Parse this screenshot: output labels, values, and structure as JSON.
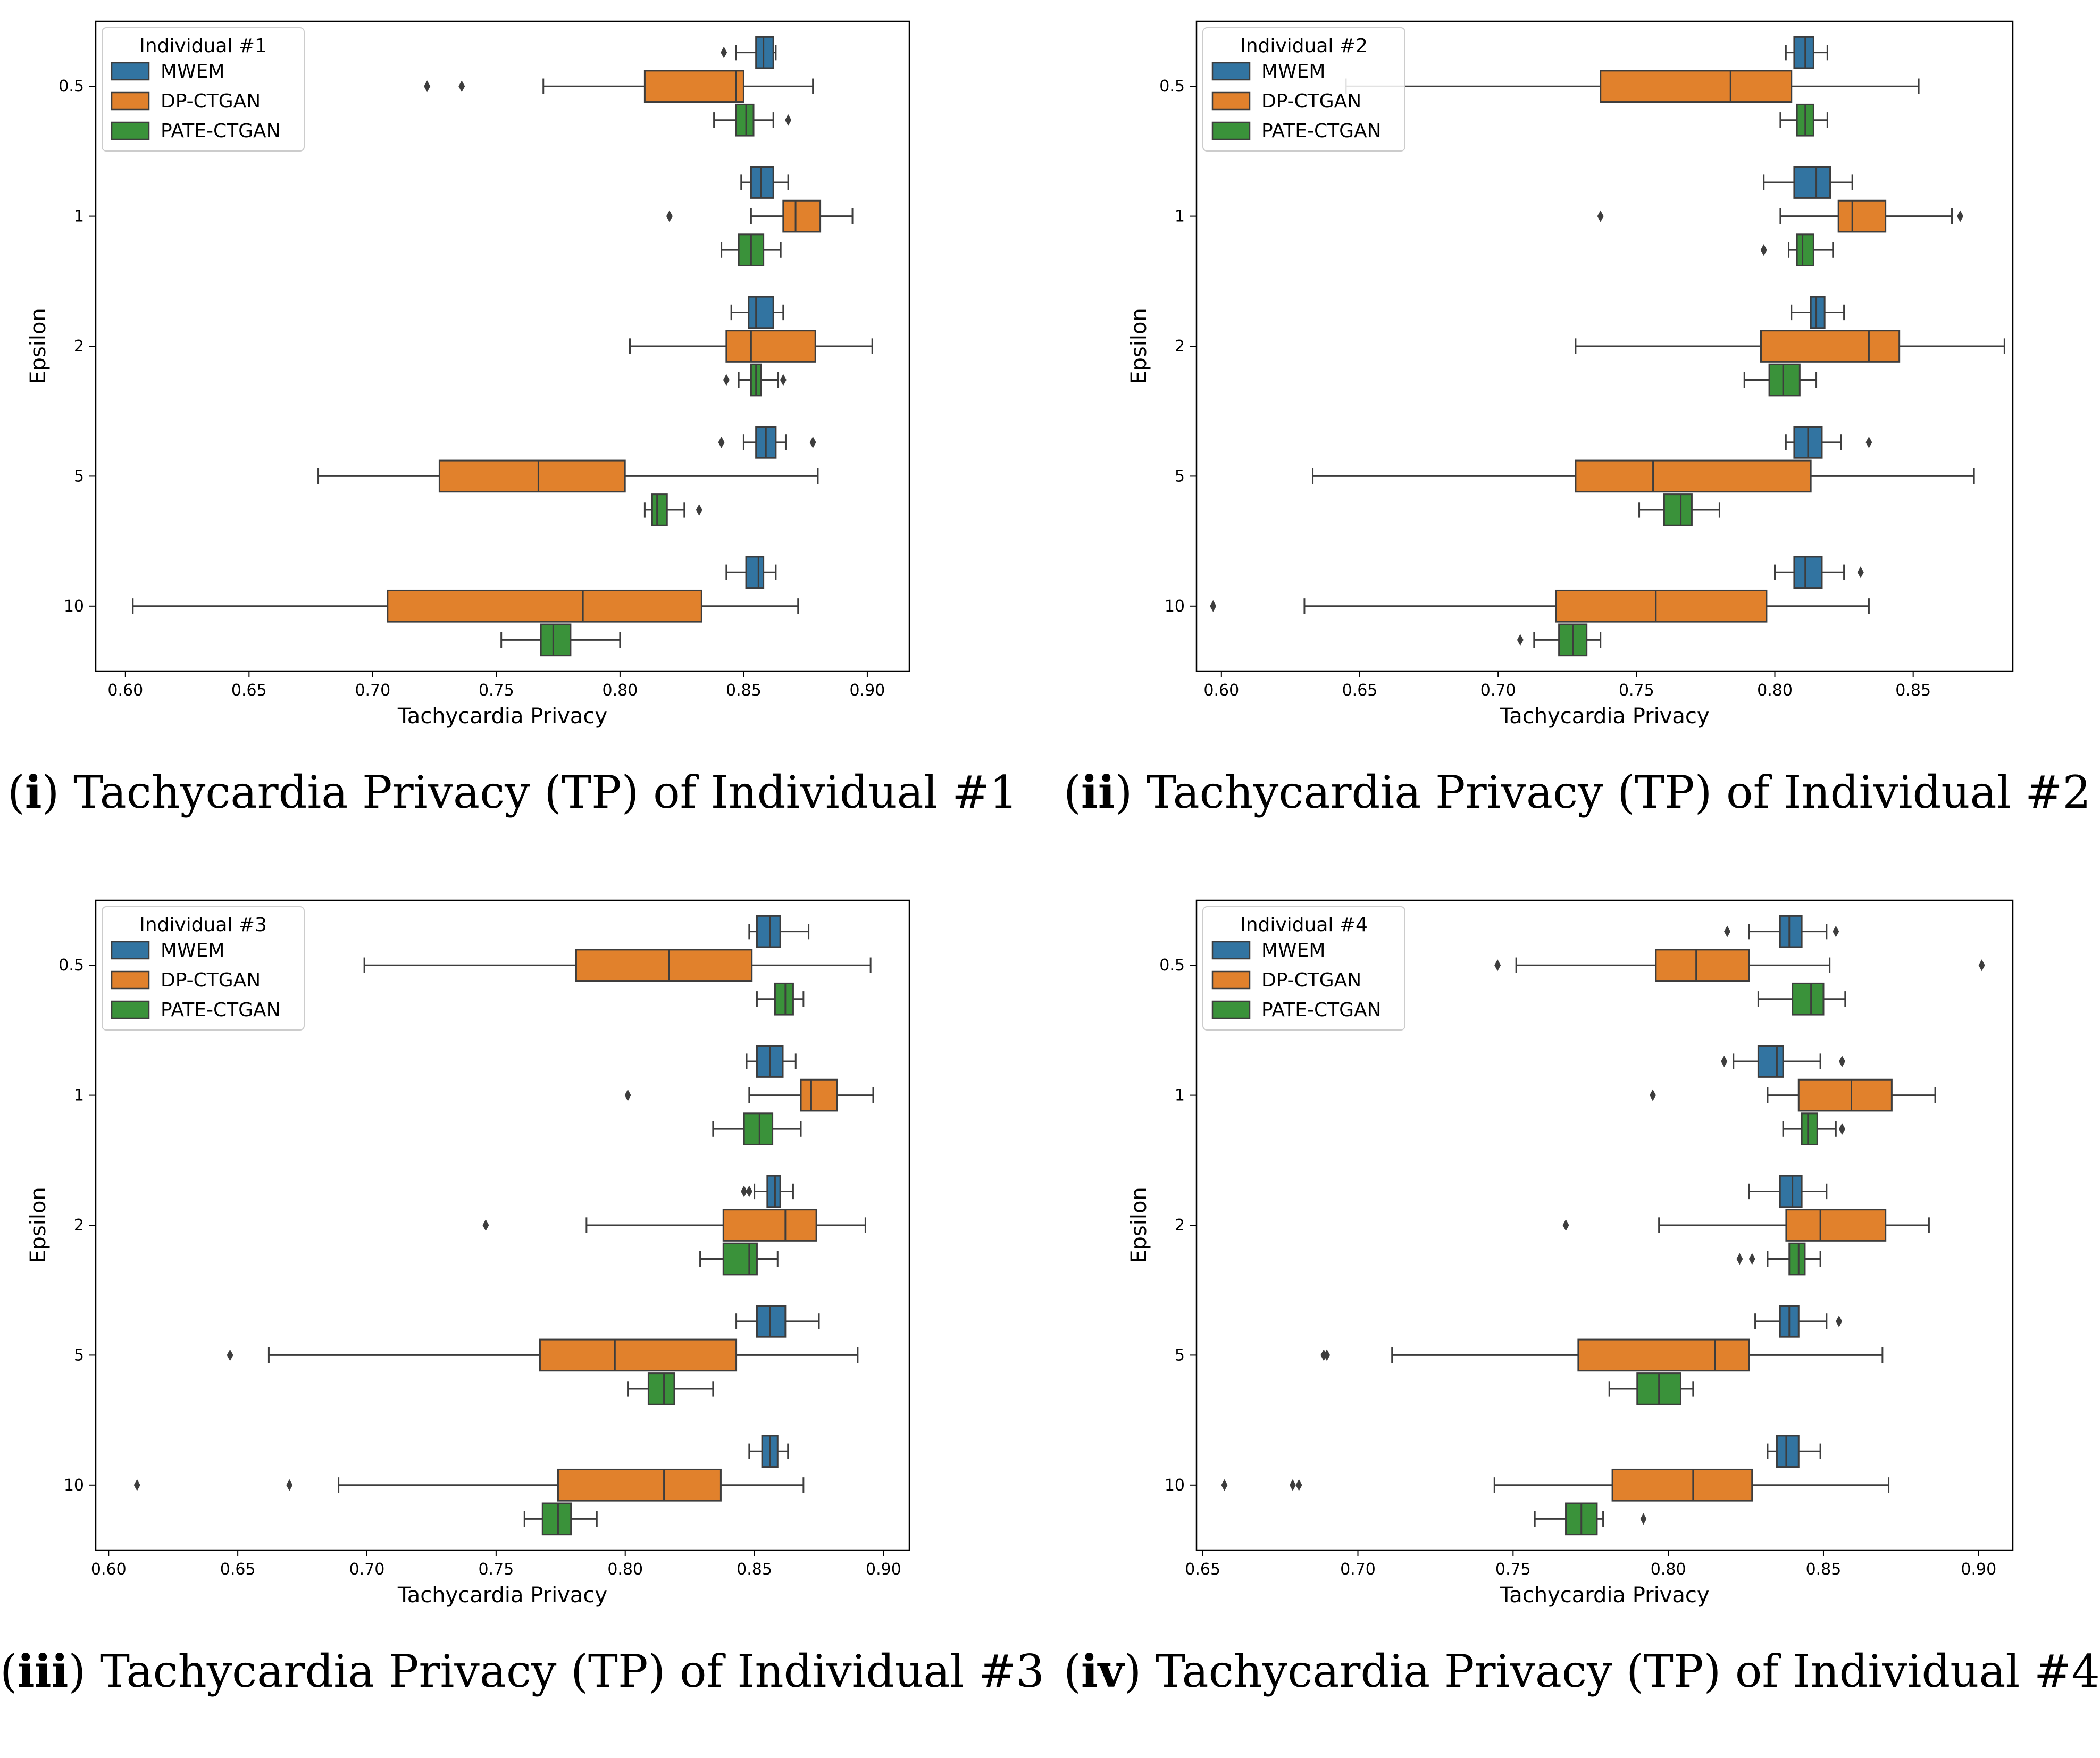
{
  "colors": {
    "MWEM": "#3274a1",
    "DP-CTGAN": "#e1812c",
    "PATE-CTGAN": "#3a923a",
    "edge": "#3d3d3d"
  },
  "chart_data": [
    {
      "type": "boxplot",
      "orientation": "horizontal",
      "caption_num": "i",
      "caption_text": " Tachycardia Privacy (TP) of Individual #1",
      "legend_title": "Individual #1",
      "legend_position": "upper-left",
      "xlabel": "Tachycardia Privacy",
      "ylabel": "Epsilon",
      "xlim": [
        0.588,
        0.917
      ],
      "xticks": [
        0.6,
        0.65,
        0.7,
        0.75,
        0.8,
        0.85,
        0.9
      ],
      "xtick_labels": [
        "0.60",
        "0.65",
        "0.70",
        "0.75",
        "0.80",
        "0.85",
        "0.90"
      ],
      "categories": [
        "0.5",
        "1",
        "2",
        "5",
        "10"
      ],
      "series": [
        {
          "name": "MWEM",
          "boxes": [
            {
              "wl": 0.847,
              "q1": 0.855,
              "med": 0.858,
              "q3": 0.862,
              "wh": 0.863,
              "fliers": [
                0.842
              ]
            },
            {
              "wl": 0.849,
              "q1": 0.853,
              "med": 0.857,
              "q3": 0.862,
              "wh": 0.868,
              "fliers": []
            },
            {
              "wl": 0.845,
              "q1": 0.852,
              "med": 0.855,
              "q3": 0.862,
              "wh": 0.866,
              "fliers": []
            },
            {
              "wl": 0.85,
              "q1": 0.855,
              "med": 0.859,
              "q3": 0.863,
              "wh": 0.867,
              "fliers": [
                0.841,
                0.878
              ]
            },
            {
              "wl": 0.843,
              "q1": 0.851,
              "med": 0.856,
              "q3": 0.858,
              "wh": 0.863,
              "fliers": []
            }
          ]
        },
        {
          "name": "DP-CTGAN",
          "boxes": [
            {
              "wl": 0.769,
              "q1": 0.81,
              "med": 0.847,
              "q3": 0.85,
              "wh": 0.878,
              "fliers": [
                0.722,
                0.736
              ]
            },
            {
              "wl": 0.853,
              "q1": 0.866,
              "med": 0.871,
              "q3": 0.881,
              "wh": 0.894,
              "fliers": [
                0.82
              ]
            },
            {
              "wl": 0.804,
              "q1": 0.843,
              "med": 0.853,
              "q3": 0.879,
              "wh": 0.902,
              "fliers": []
            },
            {
              "wl": 0.678,
              "q1": 0.727,
              "med": 0.767,
              "q3": 0.802,
              "wh": 0.88,
              "fliers": []
            },
            {
              "wl": 0.603,
              "q1": 0.706,
              "med": 0.785,
              "q3": 0.833,
              "wh": 0.872,
              "fliers": []
            }
          ]
        },
        {
          "name": "PATE-CTGAN",
          "boxes": [
            {
              "wl": 0.838,
              "q1": 0.847,
              "med": 0.851,
              "q3": 0.854,
              "wh": 0.862,
              "fliers": [
                0.868
              ]
            },
            {
              "wl": 0.841,
              "q1": 0.848,
              "med": 0.853,
              "q3": 0.858,
              "wh": 0.865,
              "fliers": []
            },
            {
              "wl": 0.848,
              "q1": 0.853,
              "med": 0.855,
              "q3": 0.857,
              "wh": 0.864,
              "fliers": [
                0.843,
                0.866
              ]
            },
            {
              "wl": 0.81,
              "q1": 0.813,
              "med": 0.815,
              "q3": 0.819,
              "wh": 0.826,
              "fliers": [
                0.832
              ]
            },
            {
              "wl": 0.752,
              "q1": 0.768,
              "med": 0.773,
              "q3": 0.78,
              "wh": 0.8,
              "fliers": []
            }
          ]
        }
      ]
    },
    {
      "type": "boxplot",
      "orientation": "horizontal",
      "caption_num": "ii",
      "caption_text": " Tachycardia Privacy (TP) of Individual #2",
      "legend_title": "Individual #2",
      "legend_position": "upper-left",
      "xlabel": "Tachycardia Privacy",
      "ylabel": "Epsilon",
      "xlim": [
        0.591,
        0.886
      ],
      "xticks": [
        0.6,
        0.65,
        0.7,
        0.75,
        0.8,
        0.85
      ],
      "xtick_labels": [
        "0.60",
        "0.65",
        "0.70",
        "0.75",
        "0.80",
        "0.85"
      ],
      "categories": [
        "0.5",
        "1",
        "2",
        "5",
        "10"
      ],
      "series": [
        {
          "name": "MWEM",
          "boxes": [
            {
              "wl": 0.804,
              "q1": 0.807,
              "med": 0.811,
              "q3": 0.814,
              "wh": 0.819,
              "fliers": []
            },
            {
              "wl": 0.796,
              "q1": 0.807,
              "med": 0.815,
              "q3": 0.82,
              "wh": 0.828,
              "fliers": []
            },
            {
              "wl": 0.806,
              "q1": 0.813,
              "med": 0.815,
              "q3": 0.818,
              "wh": 0.825,
              "fliers": []
            },
            {
              "wl": 0.804,
              "q1": 0.807,
              "med": 0.812,
              "q3": 0.817,
              "wh": 0.824,
              "fliers": [
                0.834
              ]
            },
            {
              "wl": 0.8,
              "q1": 0.807,
              "med": 0.811,
              "q3": 0.817,
              "wh": 0.825,
              "fliers": [
                0.831
              ]
            }
          ]
        },
        {
          "name": "DP-CTGAN",
          "boxes": [
            {
              "wl": 0.645,
              "q1": 0.737,
              "med": 0.784,
              "q3": 0.806,
              "wh": 0.852,
              "fliers": []
            },
            {
              "wl": 0.802,
              "q1": 0.823,
              "med": 0.828,
              "q3": 0.84,
              "wh": 0.864,
              "fliers": [
                0.737,
                0.867
              ]
            },
            {
              "wl": 0.728,
              "q1": 0.795,
              "med": 0.834,
              "q3": 0.845,
              "wh": 0.883,
              "fliers": []
            },
            {
              "wl": 0.633,
              "q1": 0.728,
              "med": 0.756,
              "q3": 0.813,
              "wh": 0.872,
              "fliers": []
            },
            {
              "wl": 0.63,
              "q1": 0.721,
              "med": 0.757,
              "q3": 0.797,
              "wh": 0.834,
              "fliers": [
                0.597
              ]
            }
          ]
        },
        {
          "name": "PATE-CTGAN",
          "boxes": [
            {
              "wl": 0.802,
              "q1": 0.808,
              "med": 0.811,
              "q3": 0.814,
              "wh": 0.819,
              "fliers": []
            },
            {
              "wl": 0.805,
              "q1": 0.808,
              "med": 0.81,
              "q3": 0.814,
              "wh": 0.821,
              "fliers": [
                0.796
              ]
            },
            {
              "wl": 0.789,
              "q1": 0.798,
              "med": 0.803,
              "q3": 0.809,
              "wh": 0.815,
              "fliers": []
            },
            {
              "wl": 0.751,
              "q1": 0.76,
              "med": 0.766,
              "q3": 0.77,
              "wh": 0.78,
              "fliers": []
            },
            {
              "wl": 0.713,
              "q1": 0.722,
              "med": 0.727,
              "q3": 0.732,
              "wh": 0.737,
              "fliers": [
                0.708
              ]
            }
          ]
        }
      ]
    },
    {
      "type": "boxplot",
      "orientation": "horizontal",
      "caption_num": "iii",
      "caption_text": " Tachycardia Privacy (TP) of Individual #3",
      "legend_title": "Individual #3",
      "legend_position": "upper-left",
      "xlabel": "Tachycardia Privacy",
      "ylabel": "Epsilon",
      "xlim": [
        0.595,
        0.91
      ],
      "xticks": [
        0.6,
        0.65,
        0.7,
        0.75,
        0.8,
        0.85,
        0.9
      ],
      "xtick_labels": [
        "0.60",
        "0.65",
        "0.70",
        "0.75",
        "0.80",
        "0.85",
        "0.90"
      ],
      "categories": [
        "0.5",
        "1",
        "2",
        "5",
        "10"
      ],
      "series": [
        {
          "name": "MWEM",
          "boxes": [
            {
              "wl": 0.848,
              "q1": 0.851,
              "med": 0.856,
              "q3": 0.86,
              "wh": 0.871,
              "fliers": []
            },
            {
              "wl": 0.847,
              "q1": 0.851,
              "med": 0.856,
              "q3": 0.861,
              "wh": 0.866,
              "fliers": []
            },
            {
              "wl": 0.85,
              "q1": 0.855,
              "med": 0.858,
              "q3": 0.86,
              "wh": 0.865,
              "fliers": [
                0.846,
                0.848
              ]
            },
            {
              "wl": 0.843,
              "q1": 0.851,
              "med": 0.856,
              "q3": 0.862,
              "wh": 0.875,
              "fliers": []
            },
            {
              "wl": 0.848,
              "q1": 0.853,
              "med": 0.856,
              "q3": 0.859,
              "wh": 0.863,
              "fliers": []
            }
          ]
        },
        {
          "name": "DP-CTGAN",
          "boxes": [
            {
              "wl": 0.699,
              "q1": 0.781,
              "med": 0.817,
              "q3": 0.849,
              "wh": 0.895,
              "fliers": []
            },
            {
              "wl": 0.848,
              "q1": 0.868,
              "med": 0.872,
              "q3": 0.882,
              "wh": 0.896,
              "fliers": [
                0.801
              ]
            },
            {
              "wl": 0.785,
              "q1": 0.838,
              "med": 0.862,
              "q3": 0.874,
              "wh": 0.893,
              "fliers": [
                0.746
              ]
            },
            {
              "wl": 0.662,
              "q1": 0.767,
              "med": 0.796,
              "q3": 0.843,
              "wh": 0.89,
              "fliers": [
                0.647
              ]
            },
            {
              "wl": 0.689,
              "q1": 0.774,
              "med": 0.815,
              "q3": 0.837,
              "wh": 0.869,
              "fliers": [
                0.611,
                0.67
              ]
            }
          ]
        },
        {
          "name": "PATE-CTGAN",
          "boxes": [
            {
              "wl": 0.851,
              "q1": 0.858,
              "med": 0.862,
              "q3": 0.865,
              "wh": 0.869,
              "fliers": []
            },
            {
              "wl": 0.834,
              "q1": 0.846,
              "med": 0.852,
              "q3": 0.857,
              "wh": 0.868,
              "fliers": []
            },
            {
              "wl": 0.829,
              "q1": 0.838,
              "med": 0.848,
              "q3": 0.851,
              "wh": 0.859,
              "fliers": []
            },
            {
              "wl": 0.801,
              "q1": 0.809,
              "med": 0.815,
              "q3": 0.819,
              "wh": 0.834,
              "fliers": []
            },
            {
              "wl": 0.761,
              "q1": 0.768,
              "med": 0.774,
              "q3": 0.779,
              "wh": 0.789,
              "fliers": []
            }
          ]
        }
      ]
    },
    {
      "type": "boxplot",
      "orientation": "horizontal",
      "caption_num": "iv",
      "caption_text": " Tachycardia Privacy (TP) of Individual #4",
      "legend_title": "Individual #4",
      "legend_position": "upper-left",
      "xlabel": "Tachycardia Privacy",
      "ylabel": "Epsilon",
      "xlim": [
        0.648,
        0.911
      ],
      "xticks": [
        0.65,
        0.7,
        0.75,
        0.8,
        0.85,
        0.9
      ],
      "xtick_labels": [
        "0.65",
        "0.70",
        "0.75",
        "0.80",
        "0.85",
        "0.90"
      ],
      "categories": [
        "0.5",
        "1",
        "2",
        "5",
        "10"
      ],
      "series": [
        {
          "name": "MWEM",
          "boxes": [
            {
              "wl": 0.826,
              "q1": 0.836,
              "med": 0.839,
              "q3": 0.843,
              "wh": 0.851,
              "fliers": [
                0.819,
                0.854
              ]
            },
            {
              "wl": 0.821,
              "q1": 0.829,
              "med": 0.835,
              "q3": 0.837,
              "wh": 0.849,
              "fliers": [
                0.818,
                0.856
              ]
            },
            {
              "wl": 0.826,
              "q1": 0.836,
              "med": 0.84,
              "q3": 0.843,
              "wh": 0.851,
              "fliers": []
            },
            {
              "wl": 0.828,
              "q1": 0.836,
              "med": 0.839,
              "q3": 0.842,
              "wh": 0.851,
              "fliers": [
                0.855
              ]
            },
            {
              "wl": 0.832,
              "q1": 0.835,
              "med": 0.838,
              "q3": 0.842,
              "wh": 0.849,
              "fliers": []
            }
          ]
        },
        {
          "name": "DP-CTGAN",
          "boxes": [
            {
              "wl": 0.751,
              "q1": 0.796,
              "med": 0.809,
              "q3": 0.826,
              "wh": 0.852,
              "fliers": [
                0.745,
                0.901
              ]
            },
            {
              "wl": 0.832,
              "q1": 0.842,
              "med": 0.859,
              "q3": 0.872,
              "wh": 0.886,
              "fliers": [
                0.795
              ]
            },
            {
              "wl": 0.797,
              "q1": 0.838,
              "med": 0.849,
              "q3": 0.87,
              "wh": 0.884,
              "fliers": [
                0.767
              ]
            },
            {
              "wl": 0.711,
              "q1": 0.771,
              "med": 0.815,
              "q3": 0.826,
              "wh": 0.869,
              "fliers": [
                0.689,
                0.69
              ]
            },
            {
              "wl": 0.744,
              "q1": 0.782,
              "med": 0.808,
              "q3": 0.827,
              "wh": 0.871,
              "fliers": [
                0.657,
                0.679,
                0.681
              ]
            }
          ]
        },
        {
          "name": "PATE-CTGAN",
          "boxes": [
            {
              "wl": 0.829,
              "q1": 0.84,
              "med": 0.846,
              "q3": 0.85,
              "wh": 0.857,
              "fliers": []
            },
            {
              "wl": 0.837,
              "q1": 0.843,
              "med": 0.845,
              "q3": 0.848,
              "wh": 0.854,
              "fliers": [
                0.856
              ]
            },
            {
              "wl": 0.832,
              "q1": 0.839,
              "med": 0.842,
              "q3": 0.844,
              "wh": 0.849,
              "fliers": [
                0.823,
                0.827
              ]
            },
            {
              "wl": 0.781,
              "q1": 0.79,
              "med": 0.797,
              "q3": 0.804,
              "wh": 0.808,
              "fliers": []
            },
            {
              "wl": 0.757,
              "q1": 0.767,
              "med": 0.772,
              "q3": 0.777,
              "wh": 0.779,
              "fliers": [
                0.792
              ]
            }
          ]
        }
      ]
    }
  ]
}
